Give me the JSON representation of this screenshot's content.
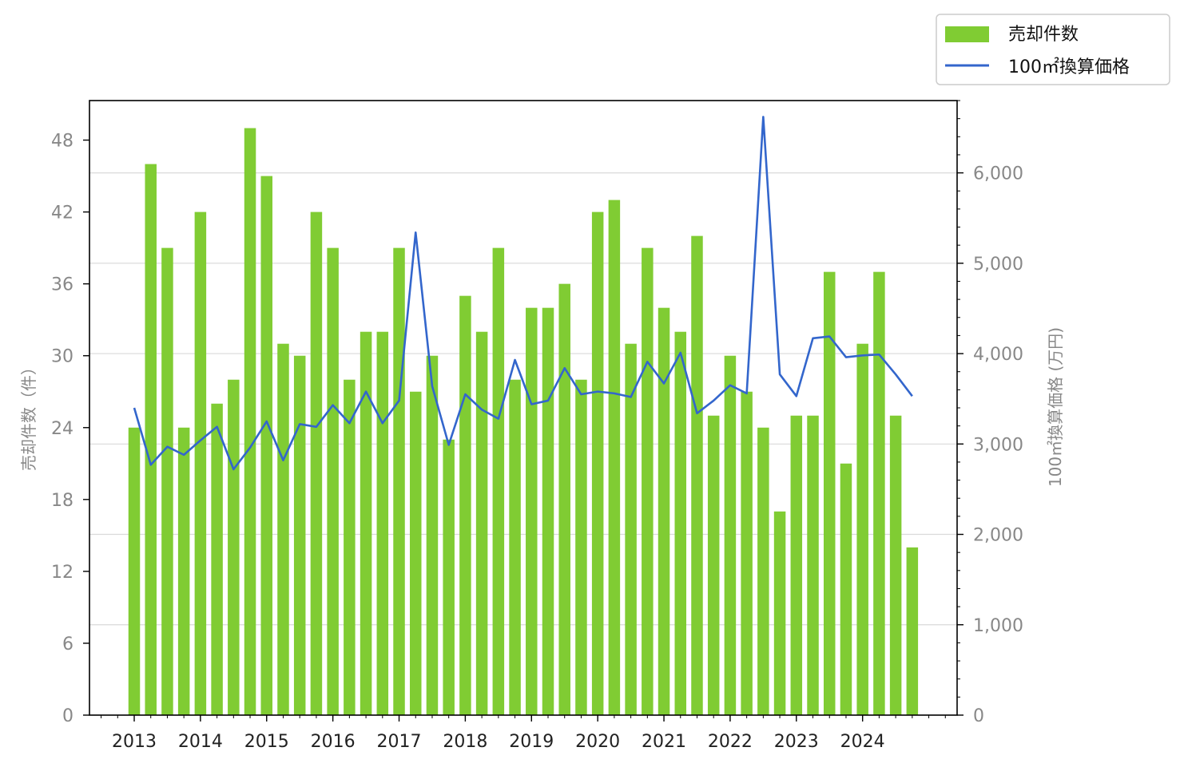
{
  "chart_data": {
    "type": "bar",
    "x_tick_labels": [
      "2013",
      "2014",
      "2015",
      "2016",
      "2017",
      "2018",
      "2019",
      "2020",
      "2021",
      "2022",
      "2023",
      "2024"
    ],
    "ylabel_left": "売却件数（件）",
    "ylabel_right": "100㎡換算価格 (万円)",
    "left_ticks": [
      "0",
      "6",
      "12",
      "18",
      "24",
      "30",
      "36",
      "42",
      "48"
    ],
    "right_ticks": [
      "0",
      "1,000",
      "2,000",
      "3,000",
      "4,000",
      "5,000",
      "6,000"
    ],
    "ylim_left": [
      0,
      51.3
    ],
    "ylim_right": [
      0,
      6800
    ],
    "grid": "horizontal (right axis)",
    "legend_position": "top-right, outside plot",
    "colors": {
      "bars": "#80cc33",
      "line": "#3366cc",
      "grid": "#d9d9d9",
      "axis": "#000000"
    },
    "series": [
      {
        "name": "売却件数",
        "kind": "bar",
        "axis": "left",
        "values": [
          24,
          46,
          39,
          24,
          42,
          26,
          28,
          49,
          45,
          31,
          30,
          42,
          39,
          28,
          32,
          32,
          39,
          27,
          30,
          23,
          35,
          32,
          39,
          28,
          34,
          34,
          36,
          28,
          42,
          43,
          31,
          39,
          34,
          32,
          40,
          25,
          30,
          27,
          24,
          17,
          25,
          25,
          37,
          21,
          31,
          37,
          25,
          14
        ]
      },
      {
        "name": "100㎡換算価格",
        "kind": "line",
        "axis": "right",
        "values": [
          3400,
          2770,
          2970,
          2880,
          3040,
          3190,
          2720,
          2960,
          3250,
          2820,
          3220,
          3190,
          3430,
          3230,
          3580,
          3230,
          3480,
          5340,
          3640,
          2990,
          3550,
          3380,
          3280,
          3930,
          3440,
          3480,
          3840,
          3550,
          3580,
          3560,
          3520,
          3910,
          3670,
          4010,
          3340,
          3480,
          3650,
          3560,
          6620,
          3770,
          3530,
          4170,
          4190,
          3960,
          3980,
          3990,
          3770,
          3530
        ]
      }
    ]
  }
}
